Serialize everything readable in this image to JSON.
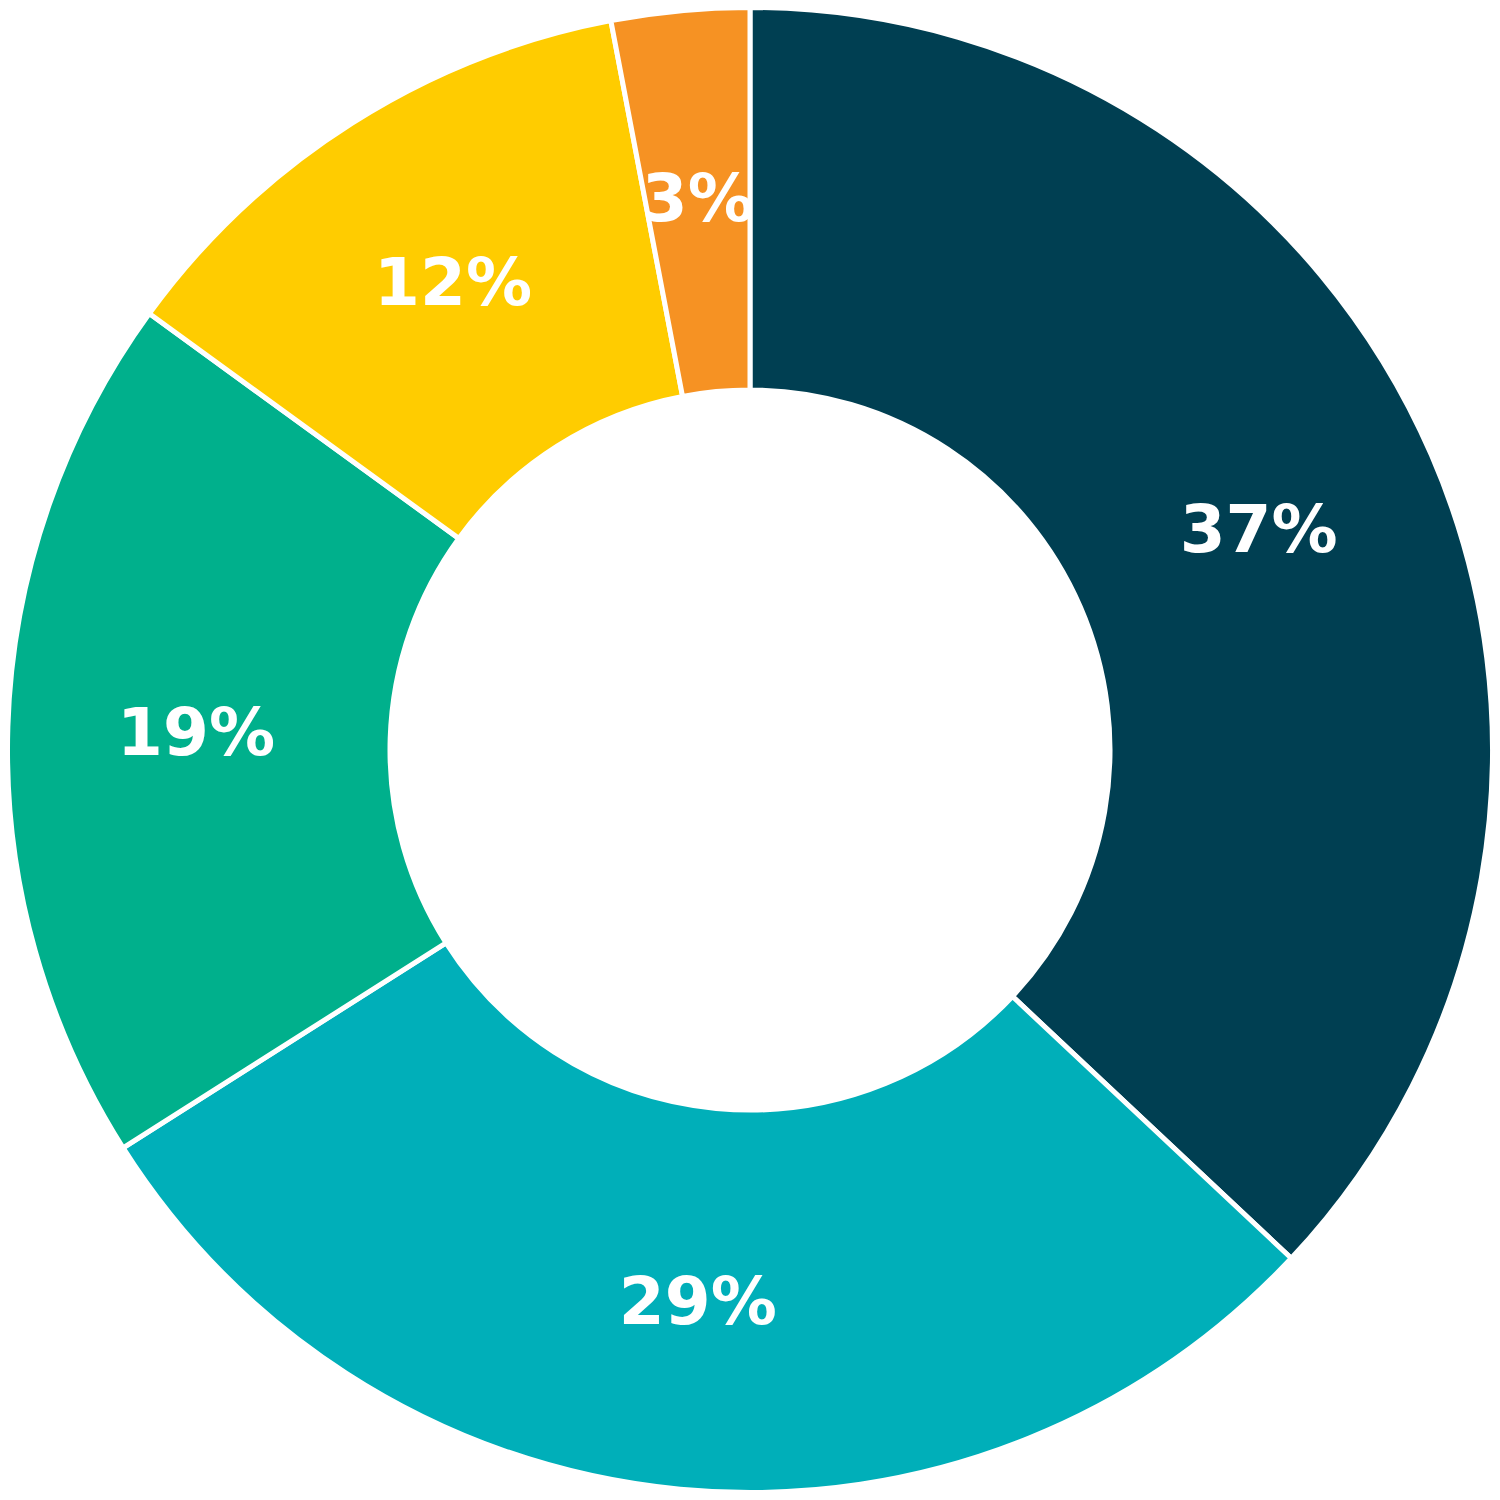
{
  "chart_data": {
    "type": "pie",
    "values": [
      37,
      29,
      19,
      12,
      3
    ],
    "value_labels": [
      "37%",
      "29%",
      "19%",
      "12%",
      "3%"
    ],
    "colors": [
      "#003f52",
      "#00afb9",
      "#00b08c",
      "#ffcc00",
      "#f69223"
    ],
    "data_labels": true
  }
}
